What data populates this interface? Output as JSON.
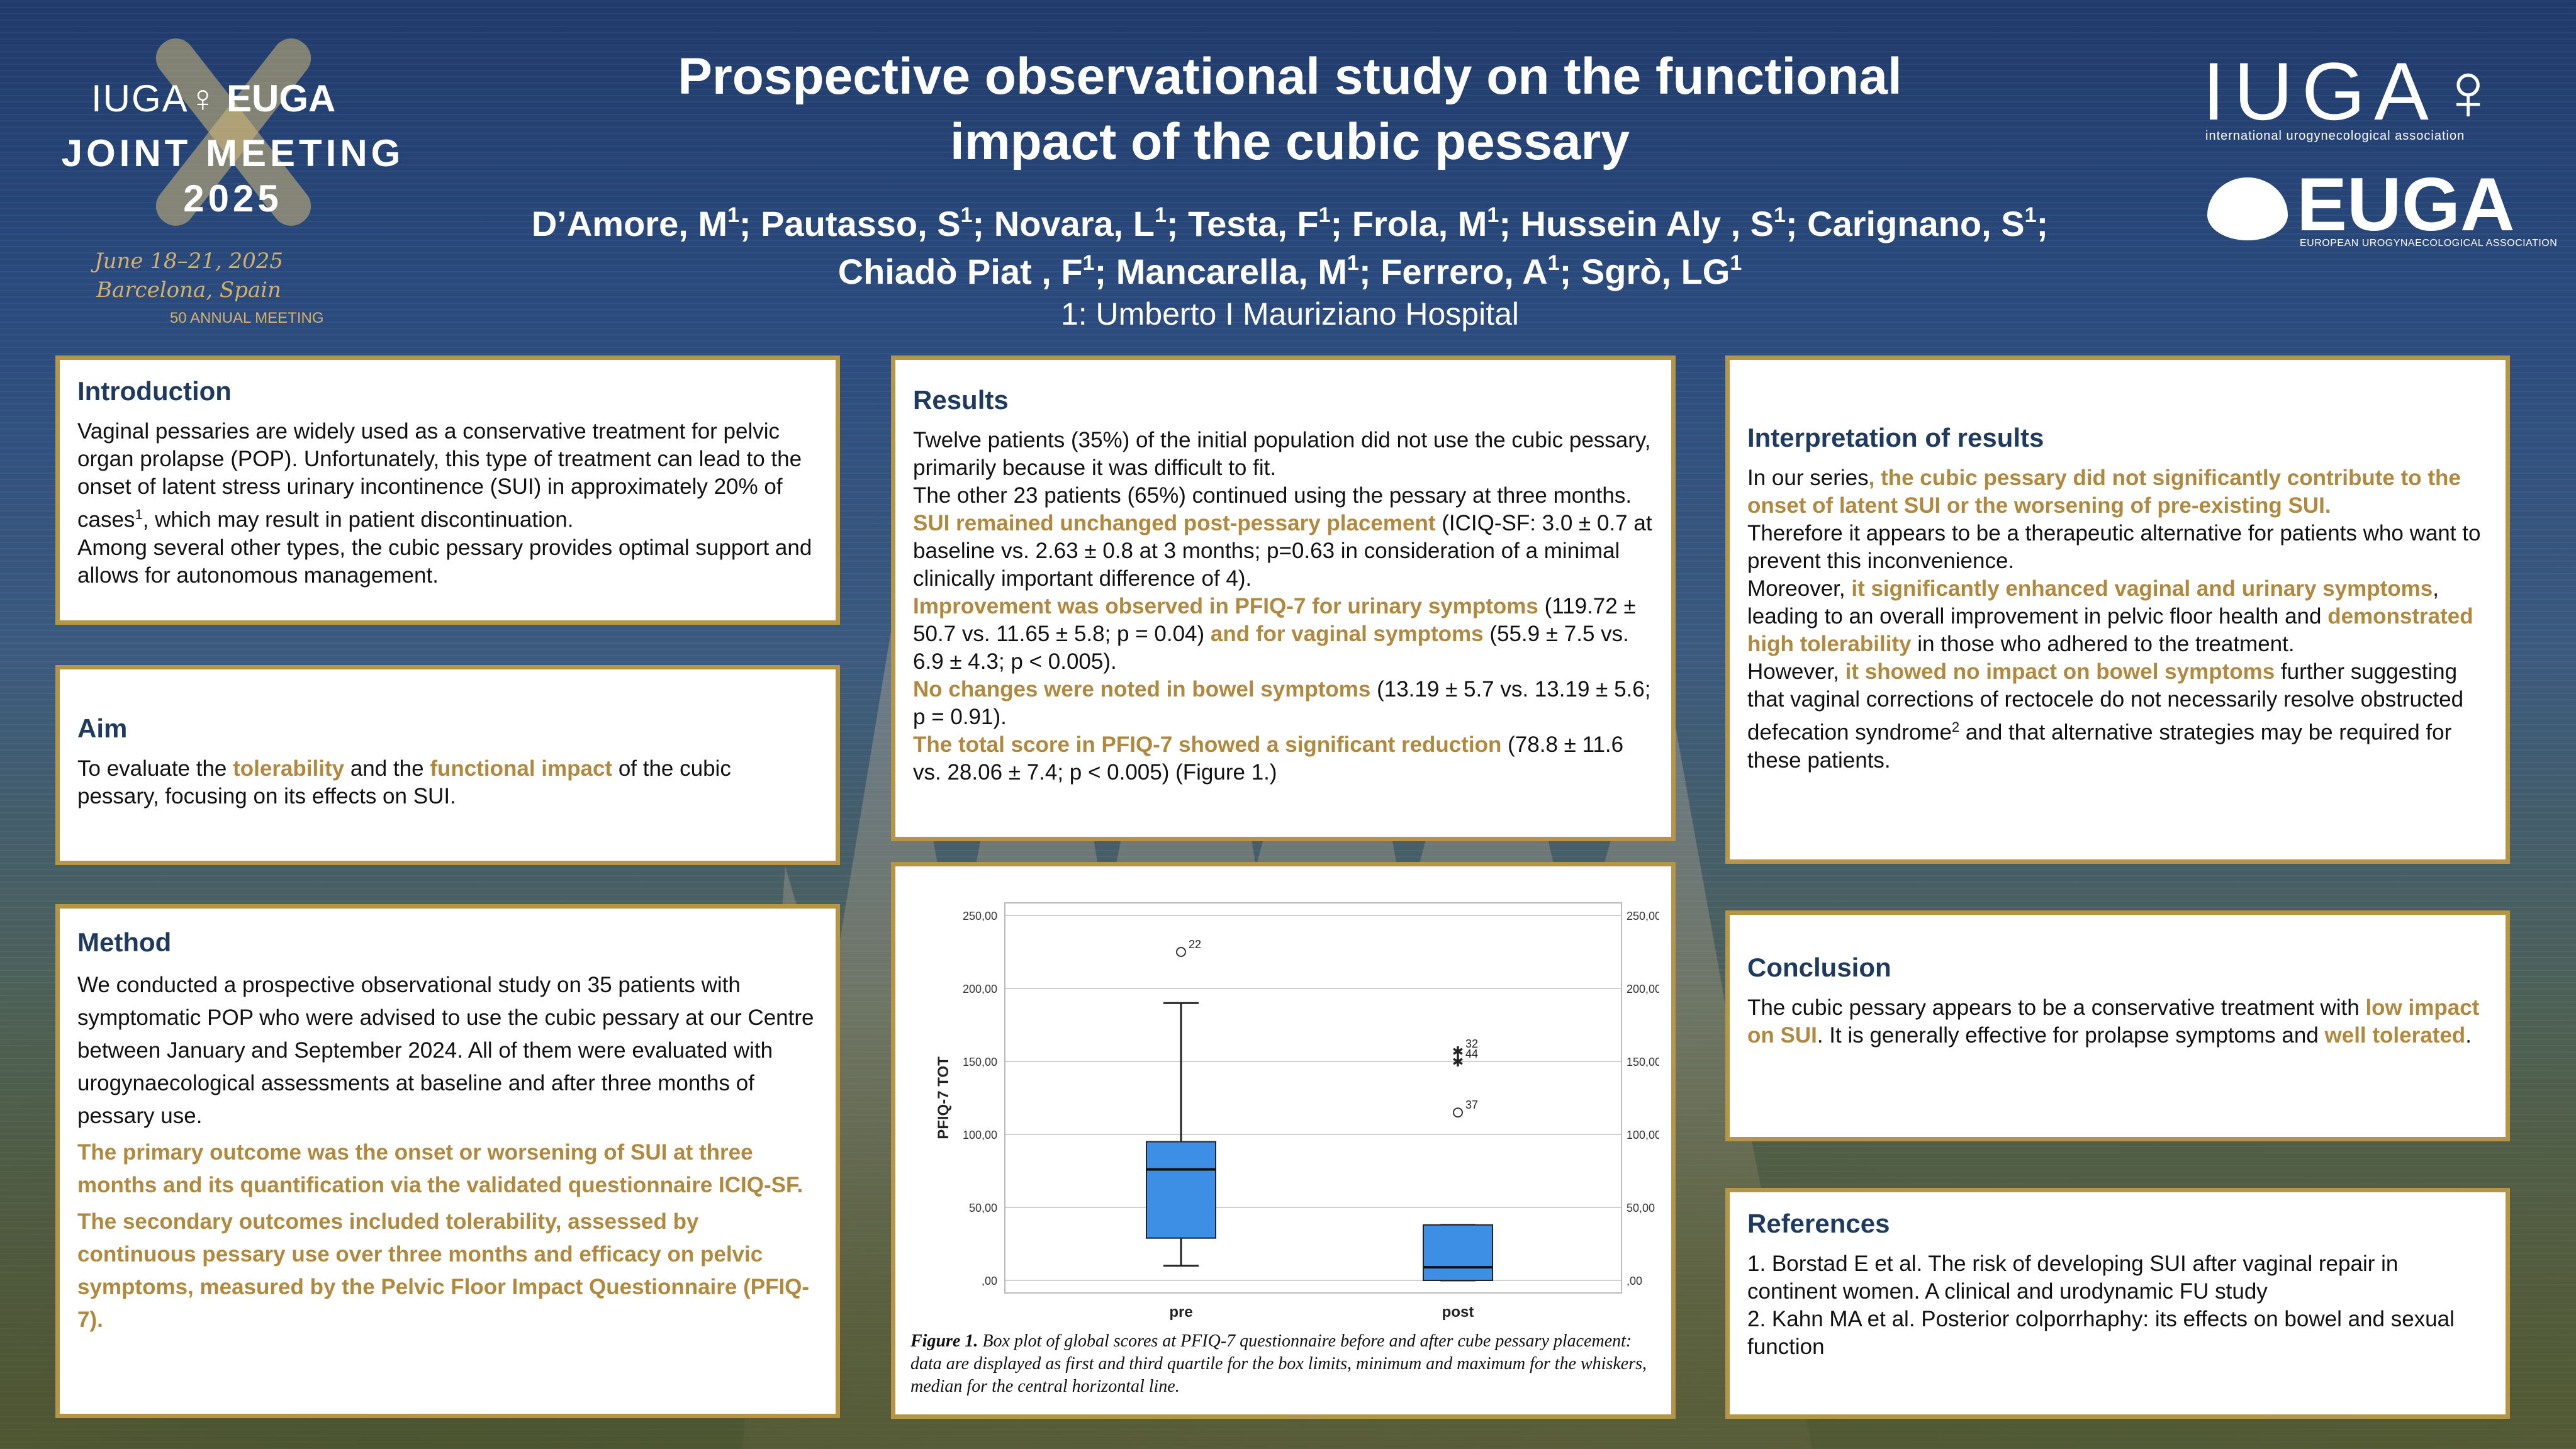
{
  "header": {
    "title_line1": "Prospective observational study on the functional",
    "title_line2": "impact of the cubic pessary",
    "authors": [
      {
        "name": "D’Amore, M",
        "sup": "1",
        "sep": "; "
      },
      {
        "name": "Pautasso, S",
        "sup": "1",
        "sep": "; "
      },
      {
        "name": "Novara, L",
        "sup": "1",
        "sep": "; "
      },
      {
        "name": "Testa, F",
        "sup": "1",
        "sep": "; "
      },
      {
        "name": "Frola, M",
        "sup": "1",
        "sep": "; "
      },
      {
        "name": "Hussein Aly , S",
        "sup": "1",
        "sep": "; "
      },
      {
        "name": "Carignano, S",
        "sup": "1",
        "sep": "; "
      },
      {
        "name": "Chiadò Piat , F",
        "sup": "1",
        "sep": "; "
      },
      {
        "name": "Mancarella, M",
        "sup": "1",
        "sep": "; "
      },
      {
        "name": "Ferrero, A",
        "sup": "1",
        "sep": "; "
      },
      {
        "name": "Sgrò, LG",
        "sup": "1",
        "sep": ""
      }
    ],
    "affiliation": "1: Umberto I Mauriziano Hospital"
  },
  "logo_left": {
    "org1": "IUGA♀",
    "org2": "EUGA",
    "title1": "JOINT MEETING",
    "title2": "2025",
    "date": "June 18–21, 2025",
    "place": "Barcelona, Spain",
    "anniversary": "50 ANNUAL MEETING"
  },
  "logo_right": {
    "iuga": "IUGA♀",
    "iuga_sub": "international urogynecological association",
    "euga": "EUGA",
    "euga_sub": "EUROPEAN UROGYNAECOLOGICAL ASSOCIATION"
  },
  "introduction": {
    "heading": "Introduction",
    "text1": "Vaginal pessaries are widely used as a conservative treatment for pelvic organ prolapse (POP). Unfortunately, this type of treatment can lead to the onset of latent stress urinary incontinence (SUI) in approximately 20% of cases",
    "sup": "1",
    "text2": ", which may result in patient discontinuation.",
    "text3": "Among several other types, the cubic pessary provides optimal support and allows for autonomous management."
  },
  "aim": {
    "heading": "Aim",
    "t1": "To evaluate the ",
    "g1": "tolerability",
    "t2": " and the ",
    "g2": "functional impact",
    "t3": " of the cubic pessary, focusing on its effects on SUI."
  },
  "method": {
    "heading": "Method",
    "p1": "We conducted a prospective observational study on 35 patients with symptomatic POP who were advised to use the cubic pessary at our Centre between January and September 2024. All of them were evaluated with urogynaecological assessments at baseline and after three months of pessary use.",
    "p2": "The primary outcome was the onset or worsening of SUI at three months and its quantification via the validated questionnaire ICIQ-SF.",
    "p3": "The secondary outcomes included tolerability, assessed by continuous pessary use over three months and efficacy on pelvic symptoms, measured by the Pelvic Floor Impact Questionnaire (PFIQ-7)."
  },
  "results": {
    "heading": "Results",
    "p1": "Twelve patients (35%) of the initial population did not use the cubic pessary, primarily because it was difficult to fit.",
    "p2": "The other 23 patients (65%) continued using the pessary at three months.",
    "g3": "SUI remained unchanged post-pessary placement",
    "t3": " (ICIQ-SF: 3.0 ± 0.7 at baseline vs. 2.63 ± 0.8 at 3 months; p=0.63 in consideration of a minimal clinically important difference of 4).",
    "g4": "Improvement was observed in PFIQ-7 for urinary symptoms",
    "t4": " (119.72 ± 50.7 vs. 11.65 ± 5.8; p = 0.04) ",
    "g4b": "and for vaginal symptoms",
    "t4b": " (55.9 ± 7.5 vs. 6.9 ± 4.3; p < 0.005).",
    "g5": "No changes were noted in bowel symptoms",
    "t5": " (13.19 ± 5.7 vs. 13.19 ± 5.6; p = 0.91).",
    "g6": "The total score in PFIQ-7 showed a significant reduction",
    "t6": " (78.8 ± 11.6 vs. 28.06 ± 7.4; p < 0.005) (Figure 1.)"
  },
  "figure": {
    "caption_bold": "Figure 1.",
    "caption": " Box plot of global scores at PFIQ-7 questionnaire before and after cube pessary placement: data are displayed as first and third quartile for the box limits, minimum and maximum for the whiskers, median for the central horizontal line."
  },
  "chart_data": {
    "type": "box",
    "title": "",
    "ylabel": "PFIQ-7 TOT",
    "xlabel": "",
    "ylim": [
      0,
      250
    ],
    "yticks": [
      0,
      50,
      100,
      150,
      200,
      250
    ],
    "ytick_labels": [
      ",00",
      "50,00",
      "100,00",
      "150,00",
      "200,00",
      "250,00"
    ],
    "grid": true,
    "categories": [
      "pre",
      "post"
    ],
    "boxes": [
      {
        "name": "pre",
        "min": 10,
        "q1": 29,
        "median": 76,
        "q3": 95,
        "max": 190,
        "outliers": [
          {
            "value": 225,
            "label": "22",
            "marker": "circle"
          }
        ]
      },
      {
        "name": "post",
        "min": 0,
        "q1": 0,
        "median": 9,
        "q3": 38,
        "max": 38,
        "outliers": [
          {
            "value": 157,
            "label": "32",
            "marker": "star"
          },
          {
            "value": 150,
            "label": "44",
            "marker": "star"
          },
          {
            "value": 115,
            "label": "37",
            "marker": "circle"
          }
        ]
      }
    ],
    "colors": {
      "box": "#3d8fe5",
      "whisker": "#222222",
      "grid": "#d0d0d0"
    }
  },
  "interpretation": {
    "heading": "Interpretation of results",
    "t1": "In our series",
    "g1": ", the cubic pessary did not significantly contribute to the onset of latent SUI or the worsening of pre-existing SUI.",
    "t2": "Therefore it appears to be a therapeutic alternative for patients who want to prevent this inconvenience.",
    "t3": "Moreover, ",
    "g3": "it significantly enhanced vaginal and urinary symptoms",
    "t3b": ", leading to an overall improvement in pelvic floor health and ",
    "g3b": "demonstrated high tolerability",
    "t3c": " in those who adhered to the treatment.",
    "t4": "However, ",
    "g4": "it showed no impact on bowel symptoms",
    "t4b": " further suggesting that vaginal corrections of rectocele do not necessarily resolve obstructed defecation syndrome",
    "sup": "2",
    "t4c": " and that alternative strategies may be required for these patients."
  },
  "conclusion": {
    "heading": "Conclusion",
    "t1": "The cubic pessary appears to be a conservative treatment with ",
    "g1": "low impact on SUI",
    "t2": ". It is generally effective for prolapse symptoms and ",
    "g2": "well tolerated",
    "t3": "."
  },
  "references": {
    "heading": "References",
    "r1": "1. Borstad E et al. The risk of developing SUI after vaginal repair in continent women. A clinical and urodynamic FU study",
    "r2": "2. Kahn MA et al. Posterior colporrhaphy: its effects on bowel and sexual function"
  }
}
